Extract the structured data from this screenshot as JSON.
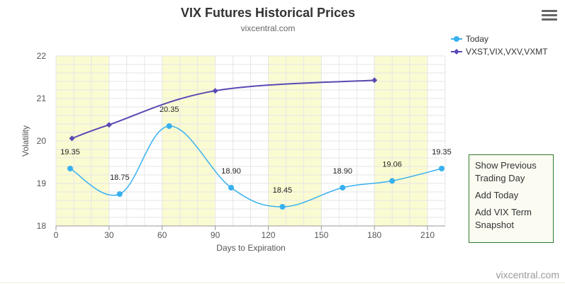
{
  "title": "VIX Futures Historical Prices",
  "subtitle": "vixcentral.com",
  "credit": "vixcentral.com",
  "menu_icon": "hamburger-menu-icon",
  "context_menu": {
    "items": [
      "Show Previous Trading Day",
      "Add Today",
      "Add VIX Term Snapshot"
    ]
  },
  "colors": {
    "today": "#38b0ef",
    "term": "#5849b3",
    "band": "#fbfbd2",
    "grid": "#e6e6e6",
    "menu_border": "#2f7d2f"
  },
  "chart_data": {
    "type": "line",
    "title": "VIX Futures Historical Prices",
    "subtitle": "vixcentral.com",
    "xlabel": "Days to Expiration",
    "ylabel": "Volatility",
    "xlim": [
      0,
      220
    ],
    "ylim": [
      18,
      22
    ],
    "x_ticks": [
      0,
      30,
      60,
      90,
      120,
      150,
      180,
      210
    ],
    "y_ticks": [
      18,
      19,
      20,
      21,
      22
    ],
    "bands": [
      [
        0,
        30
      ],
      [
        60,
        90
      ],
      [
        120,
        150
      ],
      [
        180,
        210
      ]
    ],
    "legend": "top-right",
    "series": [
      {
        "name": "Today",
        "marker": "circle",
        "x": [
          8,
          36,
          64,
          99,
          128,
          162,
          190,
          218
        ],
        "values": [
          19.35,
          18.75,
          20.35,
          18.9,
          18.45,
          18.9,
          19.06,
          19.35
        ],
        "labels": [
          "19.35",
          "18.75",
          "20.35",
          "18.90",
          "18.45",
          "18.90",
          "19.06",
          "19.35"
        ]
      },
      {
        "name": "VXST,VIX,VXV,VXMT",
        "marker": "diamond",
        "x": [
          9,
          30,
          90,
          180
        ],
        "values": [
          20.06,
          20.38,
          21.18,
          21.43
        ],
        "labels": []
      }
    ]
  }
}
